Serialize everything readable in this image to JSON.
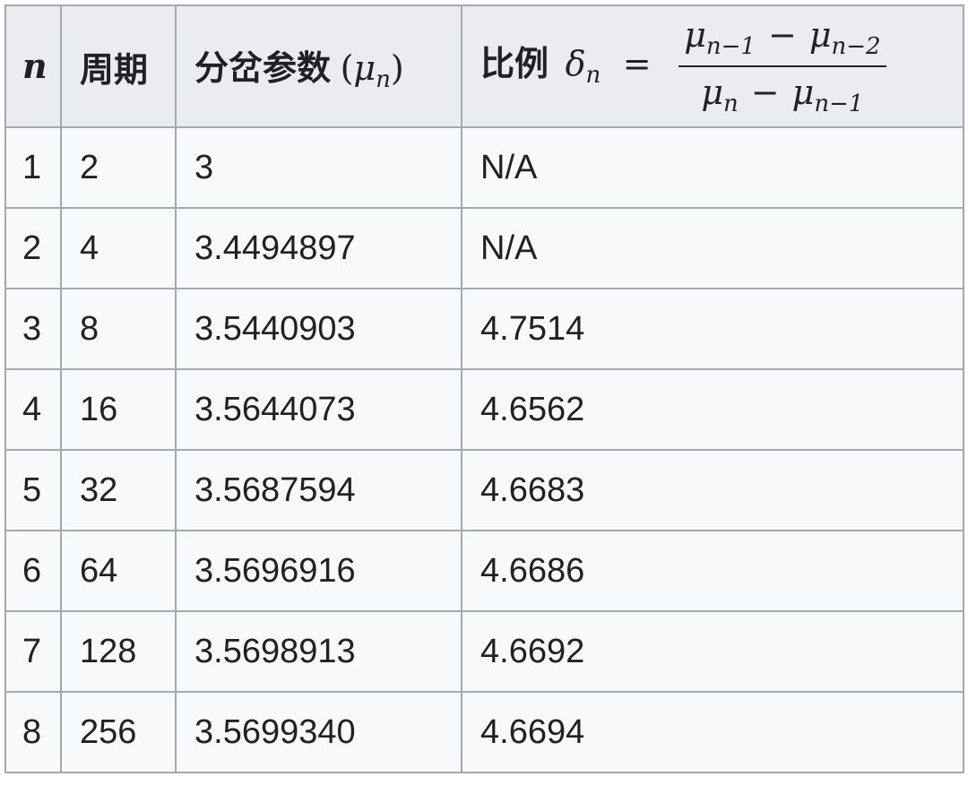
{
  "header": {
    "n": "n",
    "period": "周期",
    "param_label": "分岔参数",
    "param_symbol": "μ",
    "param_sub": "n",
    "ratio_label": "比例",
    "delta": "δ",
    "delta_sub": "n",
    "equals": "=",
    "numerator": {
      "a": "μ",
      "a_sub": "n−1",
      "minus": "−",
      "b": "μ",
      "b_sub": "n−2"
    },
    "denominator": {
      "a": "μ",
      "a_sub": "n",
      "minus": "−",
      "b": "μ",
      "b_sub": "n−1"
    }
  },
  "rows": [
    {
      "n": "1",
      "period": "2",
      "mu": "3",
      "ratio": "N/A"
    },
    {
      "n": "2",
      "period": "4",
      "mu": "3.4494897",
      "ratio": "N/A"
    },
    {
      "n": "3",
      "period": "8",
      "mu": "3.5440903",
      "ratio": "4.7514"
    },
    {
      "n": "4",
      "period": "16",
      "mu": "3.5644073",
      "ratio": "4.6562"
    },
    {
      "n": "5",
      "period": "32",
      "mu": "3.5687594",
      "ratio": "4.6683"
    },
    {
      "n": "6",
      "period": "64",
      "mu": "3.5696916",
      "ratio": "4.6686"
    },
    {
      "n": "7",
      "period": "128",
      "mu": "3.5698913",
      "ratio": "4.6692"
    },
    {
      "n": "8",
      "period": "256",
      "mu": "3.5699340",
      "ratio": "4.6694"
    }
  ],
  "colors": {
    "header_bg": "#eaecf0",
    "cell_bg": "#f8f9fa",
    "border": "#a2a9b1",
    "text": "#202122"
  }
}
